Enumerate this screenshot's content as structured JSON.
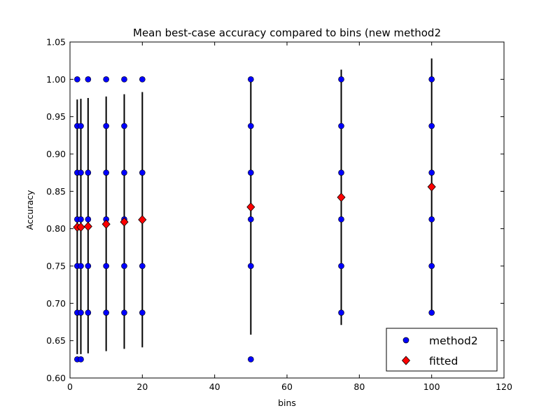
{
  "chart_data": {
    "type": "scatter",
    "title": "Mean best-case accuracy compared to bins (new method2",
    "xlabel": "bins",
    "ylabel": "Accuracy",
    "xlim": [
      0,
      120
    ],
    "ylim": [
      0.6,
      1.05
    ],
    "xticks": [
      "0",
      "20",
      "40",
      "60",
      "80",
      "100",
      "120"
    ],
    "yticks": [
      "0.60",
      "0.65",
      "0.70",
      "0.75",
      "0.80",
      "0.85",
      "0.90",
      "0.95",
      "1.00",
      "1.05"
    ],
    "grid": false,
    "legend_position": "lower-right",
    "series": [
      {
        "name": "method2",
        "marker": "circle",
        "color": "#0000ff",
        "points": [
          {
            "x": 2,
            "y": [
              0.625,
              0.6875,
              0.75,
              0.8125,
              0.875,
              0.9375,
              1.0
            ]
          },
          {
            "x": 3,
            "y": [
              0.625,
              0.6875,
              0.75,
              0.8125,
              0.875,
              0.9375
            ]
          },
          {
            "x": 5,
            "y": [
              0.6875,
              0.75,
              0.8125,
              0.875,
              1.0
            ]
          },
          {
            "x": 10,
            "y": [
              0.6875,
              0.75,
              0.8125,
              0.875,
              0.9375,
              1.0
            ]
          },
          {
            "x": 15,
            "y": [
              0.6875,
              0.75,
              0.8125,
              0.875,
              0.9375,
              1.0
            ]
          },
          {
            "x": 20,
            "y": [
              0.6875,
              0.75,
              0.875,
              1.0
            ]
          },
          {
            "x": 50,
            "y": [
              0.625,
              0.75,
              0.8125,
              0.875,
              0.9375,
              1.0
            ]
          },
          {
            "x": 75,
            "y": [
              0.6875,
              0.75,
              0.8125,
              0.875,
              0.9375,
              1.0
            ]
          },
          {
            "x": 100,
            "y": [
              0.6875,
              0.75,
              0.8125,
              0.875,
              0.9375,
              1.0
            ]
          }
        ]
      },
      {
        "name": "fitted",
        "marker": "diamond",
        "color": "#ff0000",
        "points": [
          {
            "x": 2,
            "y": 0.802,
            "err_low": 0.632,
            "err_high": 0.973
          },
          {
            "x": 3,
            "y": 0.802,
            "err_low": 0.632,
            "err_high": 0.974
          },
          {
            "x": 5,
            "y": 0.803,
            "err_low": 0.633,
            "err_high": 0.975
          },
          {
            "x": 10,
            "y": 0.806,
            "err_low": 0.636,
            "err_high": 0.977
          },
          {
            "x": 15,
            "y": 0.809,
            "err_low": 0.639,
            "err_high": 0.98
          },
          {
            "x": 20,
            "y": 0.812,
            "err_low": 0.641,
            "err_high": 0.983
          },
          {
            "x": 50,
            "y": 0.829,
            "err_low": 0.658,
            "err_high": 1.0
          },
          {
            "x": 75,
            "y": 0.842,
            "err_low": 0.671,
            "err_high": 1.013
          },
          {
            "x": 100,
            "y": 0.856,
            "err_low": 0.686,
            "err_high": 1.028
          }
        ]
      }
    ]
  }
}
